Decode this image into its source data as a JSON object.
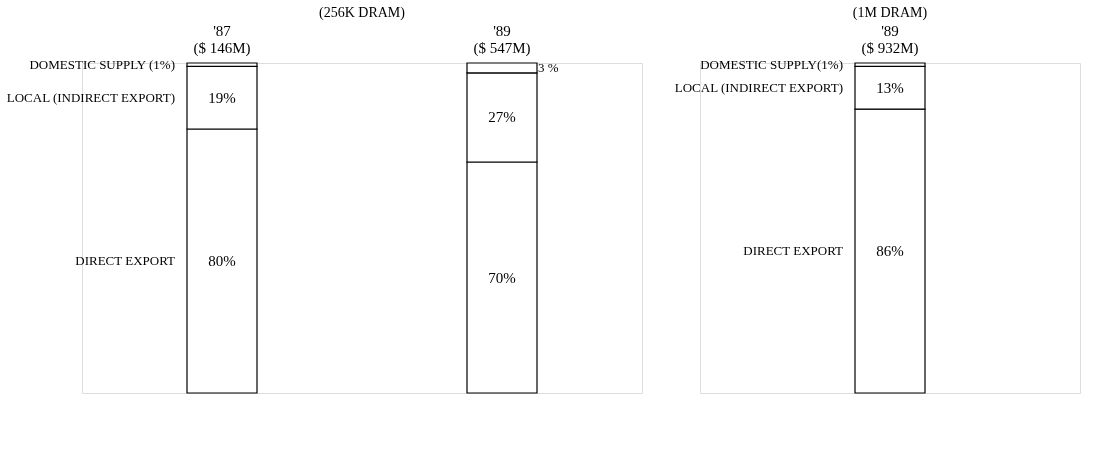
{
  "chart_data": [
    {
      "type": "bar",
      "stacked": true,
      "title": "(256K DRAM)",
      "categories": [
        "'87 ($ 146M)",
        "'89 ($ 547M)"
      ],
      "tick_labels": "x",
      "series": [
        {
          "name": "DIRECT EXPORT",
          "color": "#ffffff",
          "values": [
            80,
            70
          ],
          "value_labels": [
            "80%",
            "70%"
          ]
        },
        {
          "name": "LOCAL (INDIRECT EXPORT)",
          "color": "#ffffff",
          "values": [
            19,
            27
          ],
          "value_labels": [
            "19%",
            "27%"
          ]
        },
        {
          "name": "DOMESTIC SUPPLY (1%)",
          "color": "#ffffff",
          "values": [
            1,
            3
          ],
          "value_labels": [
            null,
            "3 %"
          ]
        }
      ]
    },
    {
      "type": "bar",
      "stacked": true,
      "title": "(1M DRAM)",
      "categories": [
        "'89 ($ 932M)"
      ],
      "tick_labels": "x",
      "series": [
        {
          "name": "DIRECT EXPORT",
          "color": "#ffffff",
          "values": [
            86
          ],
          "value_labels": [
            "86%"
          ]
        },
        {
          "name": "LOCAL (INDIRECT EXPORT)",
          "color": "#ffffff",
          "values": [
            13
          ],
          "value_labels": [
            "13%"
          ]
        },
        {
          "name": "DOMESTIC SUPPLY(1%)",
          "color": "#ffffff",
          "values": [
            1
          ],
          "value_labels": [
            null
          ]
        }
      ]
    }
  ]
}
